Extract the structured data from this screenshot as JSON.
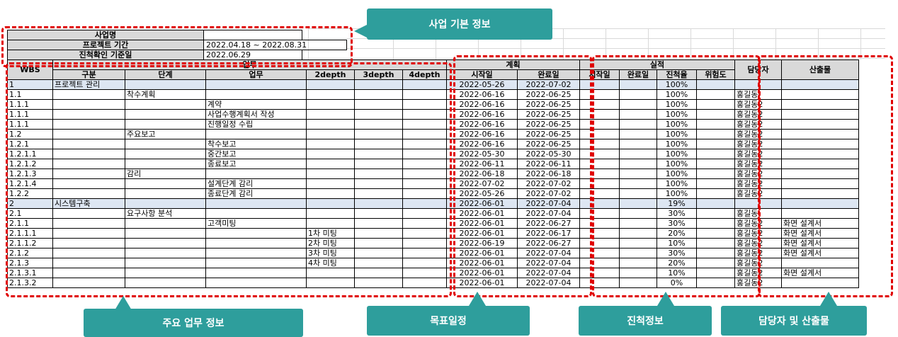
{
  "project_info": {
    "name_label": "사업명",
    "name_value": "",
    "period_label": "프로젝트 기간",
    "period_value": "2022.04.18 ~ 2022.08.31",
    "check_label": "진척확인 기준일",
    "check_value": "2022.06.29"
  },
  "headers": {
    "wbs": "WBS",
    "work_group": "업무",
    "gubun": "구분",
    "stage": "단계",
    "task": "업무",
    "depth2": "2depth",
    "depth3": "3depth",
    "depth4": "4depth",
    "plan_group": "계획",
    "plan_start": "시작일",
    "plan_end": "완료일",
    "actual_group": "실적",
    "actual_start": "시작일",
    "actual_end": "완료일",
    "progress": "진척율",
    "risk": "위험도",
    "owner": "담당자",
    "output": "산출물"
  },
  "rows": [
    {
      "wbs": "1",
      "gubun": "프로젝트 관리",
      "stage": "",
      "task": "",
      "d2": "",
      "d3": "",
      "d4": "",
      "ps": "2022-05-26",
      "pe": "2022-07-02",
      "as": "",
      "ae": "",
      "rate": "100%",
      "risk": "",
      "owner": "",
      "output": "",
      "hl": true
    },
    {
      "wbs": "1.1",
      "gubun": "",
      "stage": "착수계획",
      "task": "",
      "d2": "",
      "d3": "",
      "d4": "",
      "ps": "2022-06-16",
      "pe": "2022-06-25",
      "as": "",
      "ae": "",
      "rate": "100%",
      "risk": "",
      "owner": "홍길동",
      "output": ""
    },
    {
      "wbs": "1.1.1",
      "gubun": "",
      "stage": "",
      "task": "계약",
      "d2": "",
      "d3": "",
      "d4": "",
      "ps": "2022-06-16",
      "pe": "2022-06-25",
      "as": "",
      "ae": "",
      "rate": "100%",
      "risk": "",
      "owner": "홍길동2",
      "output": ""
    },
    {
      "wbs": "1.1.1",
      "gubun": "",
      "stage": "",
      "task": "사업수행계획서 작성",
      "d2": "",
      "d3": "",
      "d4": "",
      "ps": "2022-06-16",
      "pe": "2022-06-25",
      "as": "",
      "ae": "",
      "rate": "100%",
      "risk": "",
      "owner": "홍길동2",
      "output": ""
    },
    {
      "wbs": "1.1.1",
      "gubun": "",
      "stage": "",
      "task": "진행일정 수립",
      "d2": "",
      "d3": "",
      "d4": "",
      "ps": "2022-06-16",
      "pe": "2022-06-25",
      "as": "",
      "ae": "",
      "rate": "100%",
      "risk": "",
      "owner": "홍길동2",
      "output": ""
    },
    {
      "wbs": "1.2",
      "gubun": "",
      "stage": "주요보고",
      "task": "",
      "d2": "",
      "d3": "",
      "d4": "",
      "ps": "2022-06-16",
      "pe": "2022-06-25",
      "as": "",
      "ae": "",
      "rate": "100%",
      "risk": "",
      "owner": "홍길동2",
      "output": ""
    },
    {
      "wbs": "1.2.1",
      "gubun": "",
      "stage": "",
      "task": "착수보고",
      "d2": "",
      "d3": "",
      "d4": "",
      "ps": "2022-06-16",
      "pe": "2022-06-25",
      "as": "",
      "ae": "",
      "rate": "100%",
      "risk": "",
      "owner": "홍길동2",
      "output": ""
    },
    {
      "wbs": "1.2.1.1",
      "gubun": "",
      "stage": "",
      "task": "중간보고",
      "d2": "",
      "d3": "",
      "d4": "",
      "ps": "2022-05-30",
      "pe": "2022-05-30",
      "as": "",
      "ae": "",
      "rate": "100%",
      "risk": "",
      "owner": "홍길동2",
      "output": ""
    },
    {
      "wbs": "1.2.1.2",
      "gubun": "",
      "stage": "",
      "task": "종료보고",
      "d2": "",
      "d3": "",
      "d4": "",
      "ps": "2022-06-11",
      "pe": "2022-06-11",
      "as": "",
      "ae": "",
      "rate": "100%",
      "risk": "",
      "owner": "홍길동2",
      "output": ""
    },
    {
      "wbs": "1.2.1.3",
      "gubun": "",
      "stage": "감리",
      "task": "",
      "d2": "",
      "d3": "",
      "d4": "",
      "ps": "2022-06-18",
      "pe": "2022-06-18",
      "as": "",
      "ae": "",
      "rate": "100%",
      "risk": "",
      "owner": "홍길동2",
      "output": ""
    },
    {
      "wbs": "1.2.1.4",
      "gubun": "",
      "stage": "",
      "task": "설계단계 감리",
      "d2": "",
      "d3": "",
      "d4": "",
      "ps": "2022-07-02",
      "pe": "2022-07-02",
      "as": "",
      "ae": "",
      "rate": "100%",
      "risk": "",
      "owner": "홍길동2",
      "output": ""
    },
    {
      "wbs": "1.2.2",
      "gubun": "",
      "stage": "",
      "task": "종료단계 감리",
      "d2": "",
      "d3": "",
      "d4": "",
      "ps": "2022-05-26",
      "pe": "2022-07-02",
      "as": "",
      "ae": "",
      "rate": "100%",
      "risk": "",
      "owner": "홍길동2",
      "output": ""
    },
    {
      "wbs": "2",
      "gubun": "시스템구축",
      "stage": "",
      "task": "",
      "d2": "",
      "d3": "",
      "d4": "",
      "ps": "2022-06-01",
      "pe": "2022-07-04",
      "as": "",
      "ae": "",
      "rate": "19%",
      "risk": "",
      "owner": "",
      "output": "",
      "hl": true
    },
    {
      "wbs": "2.1",
      "gubun": "",
      "stage": "요구사항 분석",
      "task": "",
      "d2": "",
      "d3": "",
      "d4": "",
      "ps": "2022-06-01",
      "pe": "2022-07-04",
      "as": "",
      "ae": "",
      "rate": "30%",
      "risk": "",
      "owner": "홍길동",
      "output": ""
    },
    {
      "wbs": "2.1.1",
      "gubun": "",
      "stage": "",
      "task": "고객미팅",
      "d2": "",
      "d3": "",
      "d4": "",
      "ps": "2022-06-01",
      "pe": "2022-06-27",
      "as": "",
      "ae": "",
      "rate": "30%",
      "risk": "",
      "owner": "홍길동2",
      "output": "화면 설계서"
    },
    {
      "wbs": "2.1.1.1",
      "gubun": "",
      "stage": "",
      "task": "",
      "d2": "1차 미팅",
      "d3": "",
      "d4": "",
      "ps": "2022-06-01",
      "pe": "2022-06-17",
      "as": "",
      "ae": "",
      "rate": "20%",
      "risk": "",
      "owner": "홍길동2",
      "output": "화면 설계서"
    },
    {
      "wbs": "2.1.1.2",
      "gubun": "",
      "stage": "",
      "task": "",
      "d2": "2차 미팅",
      "d3": "",
      "d4": "",
      "ps": "2022-06-19",
      "pe": "2022-06-27",
      "as": "",
      "ae": "",
      "rate": "10%",
      "risk": "",
      "owner": "홍길동2",
      "output": "화면 설계서"
    },
    {
      "wbs": "2.1.2",
      "gubun": "",
      "stage": "",
      "task": "",
      "d2": "3차 미팅",
      "d3": "",
      "d4": "",
      "ps": "2022-06-01",
      "pe": "2022-07-04",
      "as": "",
      "ae": "",
      "rate": "30%",
      "risk": "",
      "owner": "홍길동2",
      "output": "화면 설계서"
    },
    {
      "wbs": "2.1.3",
      "gubun": "",
      "stage": "",
      "task": "",
      "d2": "4차 미팅",
      "d3": "",
      "d4": "",
      "ps": "2022-06-01",
      "pe": "2022-07-04",
      "as": "",
      "ae": "",
      "rate": "20%",
      "risk": "",
      "owner": "홍길동2",
      "output": ""
    },
    {
      "wbs": "2.1.3.1",
      "gubun": "",
      "stage": "",
      "task": "",
      "d2": "",
      "d3": "",
      "d4": "",
      "ps": "2022-06-01",
      "pe": "2022-07-04",
      "as": "",
      "ae": "",
      "rate": "10%",
      "risk": "",
      "owner": "홍길동2",
      "output": "화면 설계서"
    },
    {
      "wbs": "2.1.3.2",
      "gubun": "",
      "stage": "",
      "task": "",
      "d2": "",
      "d3": "",
      "d4": "",
      "ps": "2022-06-01",
      "pe": "2022-07-04",
      "as": "",
      "ae": "",
      "rate": "0%",
      "risk": "",
      "owner": "홍길동2",
      "output": ""
    }
  ],
  "callouts": {
    "basic_info": "사업 기본 정보",
    "main_task": "주요 업무 정보",
    "schedule": "목표일정",
    "progress": "진척정보",
    "owner_output": "담당자 및 산출물"
  },
  "colors": {
    "callout": "#2e9e9c",
    "dash": "#e00000",
    "header": "#d9d9d9",
    "highlight_row": "#dde6f2"
  }
}
